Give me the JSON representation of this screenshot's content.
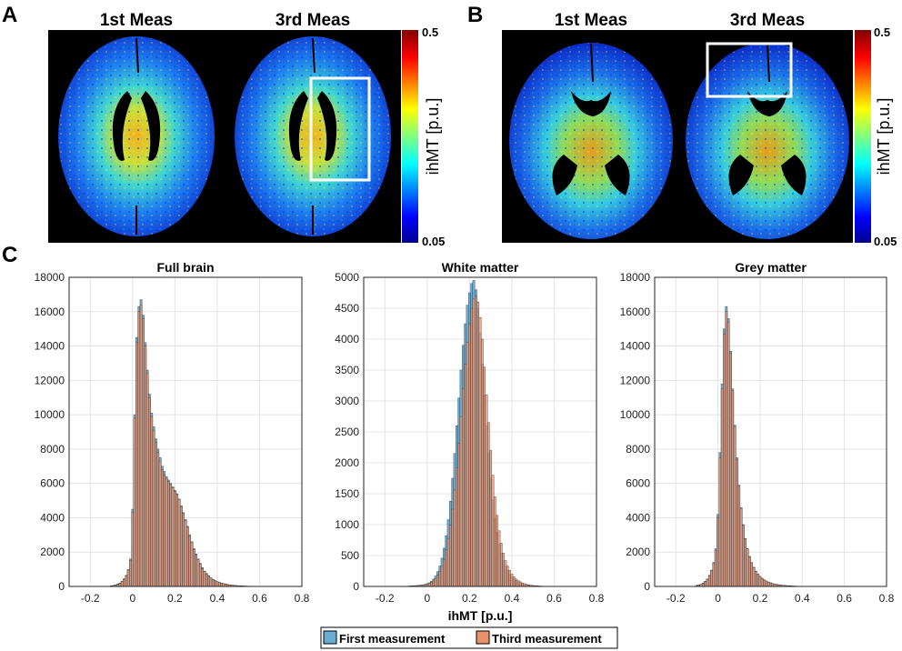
{
  "panels": {
    "A": {
      "letter": "A",
      "titles": [
        "1st Meas",
        "3rd Meas"
      ],
      "colorbar": {
        "label": "ihMT [p.u.]",
        "max_label": "0.5",
        "min_label": "0.05",
        "max": 0.5,
        "min": 0.05
      }
    },
    "B": {
      "letter": "B",
      "titles": [
        "1st Meas",
        "3rd Meas"
      ],
      "colorbar": {
        "label": "ihMT [p.u.]",
        "max_label": "0.5",
        "min_label": "0.05",
        "max": 0.5,
        "min": 0.05
      }
    },
    "C": {
      "letter": "C"
    }
  },
  "legend": {
    "first": "First measurement",
    "third": "Third measurement"
  },
  "colors": {
    "first": "#6aaed6",
    "third": "#e8926c",
    "edge": "#2b2b2b",
    "frame": "#ffffff",
    "grid": "#e3e3e3"
  },
  "chart_data": [
    {
      "type": "bar",
      "title": "Full brain",
      "xlabel": "",
      "ylabel": "",
      "xlim": [
        -0.3,
        0.8
      ],
      "ylim": [
        0,
        18000
      ],
      "xticks": [
        "-0.2",
        "0",
        "0.2",
        "0.4",
        "0.6",
        "0.8"
      ],
      "yticks": [
        "0",
        "2000",
        "4000",
        "6000",
        "8000",
        "10000",
        "12000",
        "14000",
        "16000",
        "18000"
      ],
      "grid": true,
      "bin_width": 0.01,
      "x": [
        -0.1,
        -0.09,
        -0.08,
        -0.07,
        -0.06,
        -0.05,
        -0.04,
        -0.03,
        -0.02,
        -0.01,
        0,
        0.01,
        0.02,
        0.03,
        0.04,
        0.05,
        0.06,
        0.07,
        0.08,
        0.09,
        0.1,
        0.11,
        0.12,
        0.13,
        0.14,
        0.15,
        0.16,
        0.17,
        0.18,
        0.19,
        0.2,
        0.21,
        0.22,
        0.23,
        0.24,
        0.25,
        0.26,
        0.27,
        0.28,
        0.29,
        0.3,
        0.31,
        0.32,
        0.33,
        0.34,
        0.35,
        0.36,
        0.37,
        0.38,
        0.39,
        0.4,
        0.41,
        0.42,
        0.43,
        0.44,
        0.45,
        0.46,
        0.47,
        0.48,
        0.49,
        0.5,
        0.51,
        0.52,
        0.53,
        0.54,
        0.55,
        0.56,
        0.57,
        0.58,
        0.59,
        0.6,
        0.61,
        0.62,
        0.63,
        0.64,
        0.65,
        0.66,
        0.67,
        0.68,
        0.69,
        0.7
      ],
      "series": [
        {
          "name": "First measurement",
          "values": [
            40,
            60,
            90,
            140,
            200,
            300,
            450,
            650,
            1000,
            1600,
            4500,
            10000,
            14500,
            16300,
            16700,
            15800,
            14200,
            12600,
            11200,
            10100,
            9300,
            8600,
            8000,
            7500,
            7000,
            6700,
            6400,
            6200,
            6000,
            5800,
            5600,
            5400,
            5100,
            4700,
            4300,
            3900,
            3500,
            3000,
            2600,
            2200,
            1900,
            1600,
            1350,
            1100,
            900,
            750,
            620,
            500,
            420,
            350,
            290,
            240,
            200,
            170,
            140,
            115,
            95,
            80,
            65,
            55,
            45,
            38,
            32,
            27,
            22,
            18,
            15,
            12,
            10,
            8,
            6,
            5,
            4,
            3,
            3,
            2,
            2,
            1,
            1,
            1,
            0
          ]
        },
        {
          "name": "Third measurement",
          "values": [
            30,
            50,
            80,
            120,
            180,
            280,
            420,
            620,
            950,
            1500,
            4300,
            9800,
            14200,
            16000,
            16400,
            15600,
            14000,
            12400,
            11000,
            9900,
            9100,
            8400,
            7800,
            7300,
            6800,
            6500,
            6300,
            6100,
            5950,
            5750,
            5550,
            5350,
            5050,
            4650,
            4250,
            3850,
            3450,
            2950,
            2550,
            2150,
            1850,
            1550,
            1300,
            1050,
            870,
            720,
            600,
            480,
            400,
            340,
            280,
            230,
            195,
            160,
            135,
            110,
            90,
            75,
            62,
            52,
            43,
            36,
            30,
            25,
            20,
            16,
            13,
            11,
            9,
            7,
            6,
            5,
            4,
            3,
            2,
            2,
            1,
            1,
            1,
            1,
            0
          ]
        }
      ]
    },
    {
      "type": "bar",
      "title": "White matter",
      "xlabel": "ihMT [p.u.]",
      "ylabel": "",
      "xlim": [
        -0.3,
        0.8
      ],
      "ylim": [
        0,
        5000
      ],
      "xticks": [
        "-0.2",
        "0",
        "0.2",
        "0.4",
        "0.6",
        "0.8"
      ],
      "yticks": [
        "0",
        "500",
        "1000",
        "1500",
        "2000",
        "2500",
        "3000",
        "3500",
        "4000",
        "4500",
        "5000"
      ],
      "grid": true,
      "bin_width": 0.01,
      "x": [
        -0.1,
        -0.09,
        -0.08,
        -0.07,
        -0.06,
        -0.05,
        -0.04,
        -0.03,
        -0.02,
        -0.01,
        0,
        0.01,
        0.02,
        0.03,
        0.04,
        0.05,
        0.06,
        0.07,
        0.08,
        0.09,
        0.1,
        0.11,
        0.12,
        0.13,
        0.14,
        0.15,
        0.16,
        0.17,
        0.18,
        0.19,
        0.2,
        0.21,
        0.22,
        0.23,
        0.24,
        0.25,
        0.26,
        0.27,
        0.28,
        0.29,
        0.3,
        0.31,
        0.32,
        0.33,
        0.34,
        0.35,
        0.36,
        0.37,
        0.38,
        0.39,
        0.4,
        0.41,
        0.42,
        0.43,
        0.44,
        0.45,
        0.46,
        0.47,
        0.48,
        0.49,
        0.5,
        0.51,
        0.52,
        0.53,
        0.54,
        0.55,
        0.56,
        0.57,
        0.58,
        0.59,
        0.6,
        0.61,
        0.62,
        0.63,
        0.64,
        0.65,
        0.66,
        0.67,
        0.68,
        0.69,
        0.7
      ],
      "series": [
        {
          "name": "First measurement",
          "values": [
            5,
            6,
            8,
            10,
            12,
            15,
            18,
            22,
            28,
            35,
            45,
            60,
            85,
            120,
            170,
            240,
            330,
            460,
            620,
            820,
            1080,
            1380,
            1750,
            2150,
            2600,
            3050,
            3500,
            3900,
            4250,
            4550,
            4750,
            4900,
            4950,
            4800,
            4500,
            4100,
            3600,
            3100,
            2600,
            2150,
            1750,
            1400,
            1100,
            880,
            690,
            540,
            420,
            330,
            260,
            200,
            155,
            120,
            95,
            75,
            58,
            45,
            35,
            27,
            21,
            16,
            13,
            10,
            8,
            6,
            5,
            4,
            3,
            2,
            2,
            1,
            1,
            1,
            1,
            0,
            0,
            0,
            0,
            0,
            0,
            0,
            0
          ]
        },
        {
          "name": "Third measurement",
          "values": [
            4,
            5,
            7,
            9,
            11,
            13,
            16,
            19,
            24,
            30,
            38,
            50,
            70,
            95,
            130,
            180,
            245,
            330,
            440,
            590,
            770,
            990,
            1250,
            1560,
            1920,
            2320,
            2750,
            3200,
            3600,
            3950,
            4250,
            4500,
            4650,
            4700,
            4600,
            4350,
            4000,
            3550,
            3100,
            2650,
            2200,
            1800,
            1450,
            1150,
            900,
            700,
            540,
            420,
            330,
            260,
            200,
            155,
            120,
            95,
            75,
            58,
            45,
            35,
            27,
            21,
            16,
            13,
            10,
            8,
            6,
            5,
            4,
            3,
            2,
            2,
            1,
            1,
            1,
            0,
            0,
            0,
            0,
            0,
            0,
            0,
            0
          ]
        }
      ]
    },
    {
      "type": "bar",
      "title": "Grey matter",
      "xlabel": "",
      "ylabel": "",
      "xlim": [
        -0.3,
        0.8
      ],
      "ylim": [
        0,
        18000
      ],
      "xticks": [
        "-0.2",
        "0",
        "0.2",
        "0.4",
        "0.6",
        "0.8"
      ],
      "yticks": [
        "0",
        "2000",
        "4000",
        "6000",
        "8000",
        "10000",
        "12000",
        "14000",
        "16000",
        "18000"
      ],
      "grid": true,
      "bin_width": 0.01,
      "x": [
        -0.1,
        -0.09,
        -0.08,
        -0.07,
        -0.06,
        -0.05,
        -0.04,
        -0.03,
        -0.02,
        -0.01,
        0,
        0.01,
        0.02,
        0.03,
        0.04,
        0.05,
        0.06,
        0.07,
        0.08,
        0.09,
        0.1,
        0.11,
        0.12,
        0.13,
        0.14,
        0.15,
        0.16,
        0.17,
        0.18,
        0.19,
        0.2,
        0.21,
        0.22,
        0.23,
        0.24,
        0.25,
        0.26,
        0.27,
        0.28,
        0.29,
        0.3,
        0.31,
        0.32,
        0.33,
        0.34,
        0.35,
        0.36,
        0.37,
        0.38,
        0.39,
        0.4,
        0.41,
        0.42,
        0.43,
        0.44,
        0.45,
        0.46,
        0.47,
        0.48,
        0.49,
        0.5,
        0.51,
        0.52,
        0.53,
        0.54,
        0.55,
        0.56,
        0.57,
        0.58,
        0.59,
        0.6,
        0.61,
        0.62,
        0.63,
        0.64,
        0.65,
        0.66,
        0.67,
        0.68,
        0.69,
        0.7
      ],
      "series": [
        {
          "name": "First measurement",
          "values": [
            60,
            90,
            130,
            200,
            300,
            440,
            650,
            950,
            1400,
            2200,
            4200,
            7800,
            11800,
            15000,
            16300,
            15600,
            13700,
            11500,
            9400,
            7500,
            5900,
            4600,
            3600,
            2800,
            2200,
            1750,
            1400,
            1120,
            900,
            730,
            590,
            480,
            390,
            320,
            260,
            215,
            175,
            145,
            120,
            100,
            82,
            68,
            56,
            46,
            38,
            32,
            26,
            21,
            17,
            14,
            11,
            9,
            7,
            6,
            5,
            4,
            3,
            3,
            2,
            2,
            1,
            1,
            1,
            1,
            0,
            0,
            0,
            0,
            0,
            0,
            0,
            0,
            0,
            0,
            0,
            0,
            0,
            0,
            0,
            0,
            0
          ]
        },
        {
          "name": "Third measurement",
          "values": [
            50,
            80,
            120,
            185,
            280,
            420,
            620,
            920,
            1350,
            2100,
            4000,
            7500,
            11500,
            14700,
            16000,
            15400,
            13600,
            11400,
            9300,
            7400,
            5850,
            4550,
            3560,
            2780,
            2180,
            1730,
            1380,
            1100,
            890,
            720,
            580,
            470,
            385,
            315,
            255,
            210,
            172,
            142,
            118,
            98,
            80,
            66,
            55,
            45,
            37,
            31,
            25,
            20,
            16,
            13,
            11,
            9,
            7,
            6,
            5,
            4,
            3,
            3,
            2,
            2,
            1,
            1,
            1,
            1,
            0,
            0,
            0,
            0,
            0,
            0,
            0,
            0,
            0,
            0,
            0,
            0,
            0,
            0,
            0,
            0,
            0
          ]
        }
      ]
    }
  ]
}
